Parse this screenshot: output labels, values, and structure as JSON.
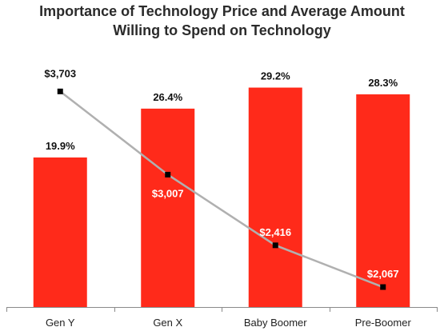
{
  "chart_data": {
    "type": "bar",
    "title_line1": "Importance of Technology Price and Average Amount",
    "title_line2": "Willing to Spend on Technology",
    "categories": [
      "Gen Y",
      "Gen X",
      "Baby Boomer",
      "Pre-Boomer"
    ],
    "series": [
      {
        "type": "bar",
        "values": [
          19.9,
          26.4,
          29.2,
          28.3
        ],
        "labels": [
          "19.9%",
          "26.4%",
          "29.2%",
          "28.3%"
        ],
        "color": "#ff2a1a"
      },
      {
        "type": "line",
        "values": [
          3703,
          3007,
          2416,
          2067
        ],
        "labels": [
          "$3,703",
          "$3,007",
          "$2,416",
          "$2,067"
        ],
        "color": "#b0b0b0",
        "marker_color": "#000000"
      }
    ],
    "bar_ylim": [
      0,
      36.6
    ],
    "line_ylim": [
      1900,
      4200
    ],
    "xlabel": "",
    "ylabel": "",
    "grid": false,
    "legend": "none"
  }
}
